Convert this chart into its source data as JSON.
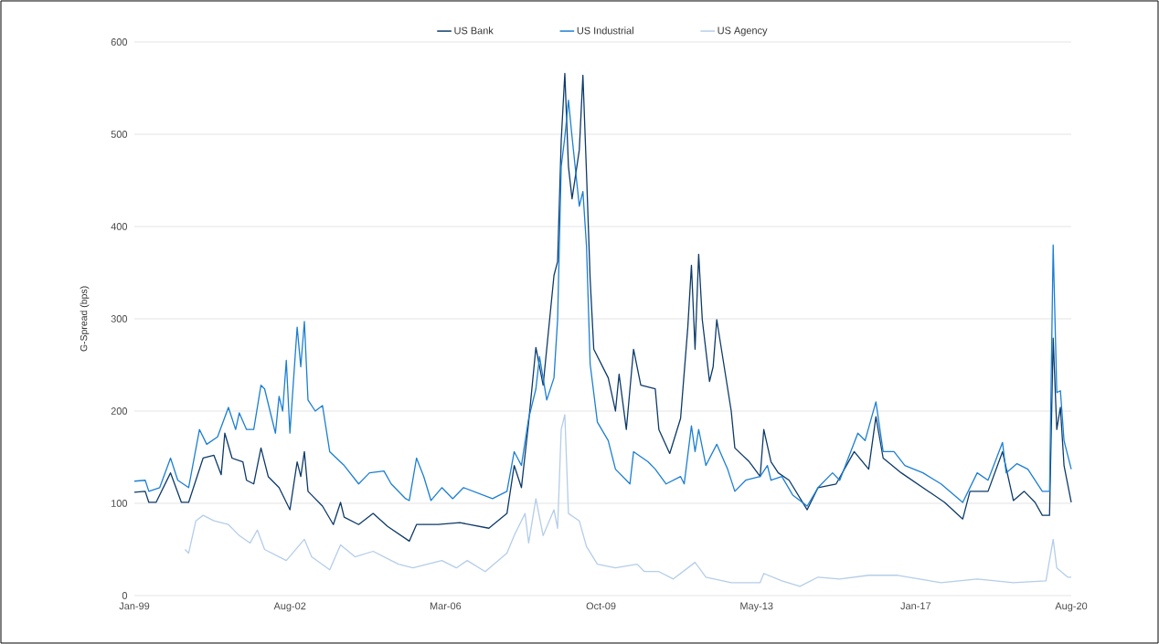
{
  "chart_data": {
    "type": "line",
    "ylabel": "G-Spread (bps)",
    "xlim": [
      "1999-01",
      "2020-08"
    ],
    "ylim": [
      0,
      600
    ],
    "xticks": [
      {
        "value": "1999-01",
        "label": "Jan-99"
      },
      {
        "value": "2002-08",
        "label": "Aug-02"
      },
      {
        "value": "2006-03",
        "label": "Mar-06"
      },
      {
        "value": "2009-10",
        "label": "Oct-09"
      },
      {
        "value": "2013-05",
        "label": "May-13"
      },
      {
        "value": "2017-01",
        "label": "Jan-17"
      },
      {
        "value": "2020-08",
        "label": "Aug-20"
      }
    ],
    "yticks": [
      0,
      100,
      200,
      300,
      400,
      500,
      600
    ],
    "grid": "y",
    "legend": "top",
    "line_style": "solid",
    "series": [
      {
        "name": "US Bank",
        "color": "#0d3a6a",
        "x": [
          "1999-01",
          "1999-04",
          "1999-05",
          "1999-07",
          "1999-11",
          "2000-02",
          "2000-04",
          "2000-08",
          "2000-11",
          "2001-01",
          "2001-02",
          "2001-04",
          "2001-07",
          "2001-08",
          "2001-10",
          "2001-12",
          "2002-02",
          "2002-05",
          "2002-08",
          "2002-10",
          "2002-11",
          "2002-12",
          "2003-01",
          "2003-05",
          "2003-08",
          "2003-10",
          "2003-11",
          "2004-03",
          "2004-07",
          "2004-11",
          "2005-05",
          "2005-07",
          "2006-01",
          "2006-07",
          "2007-03",
          "2007-08",
          "2007-10",
          "2007-12",
          "2008-02",
          "2008-04",
          "2008-06",
          "2008-09",
          "2008-10",
          "2008-11",
          "2008-12",
          "2009-01",
          "2009-02",
          "2009-04",
          "2009-05",
          "2009-06",
          "2009-07",
          "2009-08",
          "2009-12",
          "2010-02",
          "2010-03",
          "2010-05",
          "2010-07",
          "2010-09",
          "2011-01",
          "2011-02",
          "2011-05",
          "2011-08",
          "2011-10",
          "2011-11",
          "2011-12",
          "2012-01",
          "2012-02",
          "2012-04",
          "2012-05",
          "2012-06",
          "2012-10",
          "2012-11",
          "2013-03",
          "2013-06",
          "2013-07",
          "2013-09",
          "2013-11",
          "2014-02",
          "2014-07",
          "2014-10",
          "2015-03",
          "2015-08",
          "2015-12",
          "2016-02",
          "2016-04",
          "2016-09",
          "2017-03",
          "2017-09",
          "2018-02",
          "2018-04",
          "2018-09",
          "2019-01",
          "2019-04",
          "2019-07",
          "2019-10",
          "2019-12",
          "2020-02",
          "2020-03",
          "2020-04",
          "2020-05",
          "2020-06",
          "2020-08"
        ],
        "values": [
          112,
          113,
          101,
          101,
          133,
          101,
          101,
          149,
          152,
          131,
          176,
          149,
          145,
          125,
          121,
          160,
          129,
          117,
          93,
          145,
          129,
          156,
          113,
          97,
          77,
          101,
          85,
          77,
          89,
          75,
          59,
          77,
          77,
          79,
          73,
          89,
          141,
          117,
          188,
          269,
          228,
          347,
          362,
          493,
          566,
          465,
          430,
          483,
          564,
          457,
          343,
          267,
          236,
          200,
          240,
          180,
          267,
          228,
          224,
          180,
          154,
          192,
          291,
          358,
          267,
          370,
          299,
          232,
          248,
          299,
          200,
          160,
          145,
          129,
          180,
          145,
          133,
          125,
          93,
          117,
          121,
          156,
          137,
          194,
          149,
          133,
          117,
          101,
          83,
          113,
          113,
          156,
          103,
          113,
          101,
          87,
          87,
          279,
          180,
          204,
          141,
          101
        ]
      },
      {
        "name": "US Industrial",
        "color": "#1b7fd3",
        "x": [
          "1999-01",
          "1999-04",
          "1999-05",
          "1999-08",
          "1999-11",
          "2000-01",
          "2000-04",
          "2000-07",
          "2000-09",
          "2000-12",
          "2001-03",
          "2001-05",
          "2001-06",
          "2001-08",
          "2001-10",
          "2001-12",
          "2002-01",
          "2002-04",
          "2002-05",
          "2002-06",
          "2002-07",
          "2002-08",
          "2002-10",
          "2002-11",
          "2002-12",
          "2003-01",
          "2003-03",
          "2003-05",
          "2003-07",
          "2003-11",
          "2004-03",
          "2004-06",
          "2004-10",
          "2004-12",
          "2005-04",
          "2005-05",
          "2005-07",
          "2005-09",
          "2005-11",
          "2006-02",
          "2006-05",
          "2006-08",
          "2007-04",
          "2007-08",
          "2007-10",
          "2007-12",
          "2008-02",
          "2008-04",
          "2008-05",
          "2008-07",
          "2008-09",
          "2008-10",
          "2008-11",
          "2008-12",
          "2009-01",
          "2009-02",
          "2009-04",
          "2009-05",
          "2009-06",
          "2009-07",
          "2009-09",
          "2009-12",
          "2010-02",
          "2010-06",
          "2010-07",
          "2010-11",
          "2011-01",
          "2011-04",
          "2011-08",
          "2011-09",
          "2011-11",
          "2011-12",
          "2012-01",
          "2012-03",
          "2012-06",
          "2012-09",
          "2012-11",
          "2013-02",
          "2013-06",
          "2013-08",
          "2013-09",
          "2013-12",
          "2014-03",
          "2014-07",
          "2014-10",
          "2015-02",
          "2015-04",
          "2015-09",
          "2015-11",
          "2016-02",
          "2016-04",
          "2016-07",
          "2016-10",
          "2017-03",
          "2017-08",
          "2018-02",
          "2018-06",
          "2018-09",
          "2019-01",
          "2019-02",
          "2019-05",
          "2019-08",
          "2019-12",
          "2020-02",
          "2020-03",
          "2020-04",
          "2020-05",
          "2020-06",
          "2020-08"
        ],
        "values": [
          124,
          125,
          113,
          117,
          149,
          125,
          117,
          180,
          164,
          172,
          204,
          180,
          198,
          180,
          180,
          228,
          224,
          176,
          216,
          200,
          255,
          176,
          291,
          248,
          297,
          212,
          200,
          206,
          156,
          141,
          121,
          133,
          135,
          121,
          105,
          103,
          149,
          129,
          103,
          117,
          105,
          117,
          105,
          113,
          156,
          141,
          192,
          224,
          259,
          212,
          236,
          299,
          465,
          497,
          537,
          497,
          422,
          438,
          378,
          251,
          188,
          168,
          137,
          121,
          156,
          145,
          137,
          121,
          129,
          121,
          184,
          156,
          180,
          141,
          164,
          137,
          113,
          125,
          129,
          141,
          125,
          129,
          109,
          97,
          117,
          133,
          125,
          176,
          168,
          210,
          156,
          156,
          141,
          133,
          121,
          101,
          133,
          125,
          166,
          133,
          143,
          137,
          113,
          113,
          380,
          220,
          222,
          168,
          137
        ]
      },
      {
        "name": "US Agency",
        "color": "#b4cdea",
        "x": [
          "2000-03",
          "2000-04",
          "2000-06",
          "2000-08",
          "2000-11",
          "2001-03",
          "2001-06",
          "2001-09",
          "2001-11",
          "2002-01",
          "2002-07",
          "2002-12",
          "2003-02",
          "2003-07",
          "2003-10",
          "2004-02",
          "2004-07",
          "2004-12",
          "2005-02",
          "2005-06",
          "2006-02",
          "2006-06",
          "2006-09",
          "2007-02",
          "2007-08",
          "2007-10",
          "2008-01",
          "2008-02",
          "2008-04",
          "2008-06",
          "2008-09",
          "2008-10",
          "2008-11",
          "2008-12",
          "2009-01",
          "2009-04",
          "2009-06",
          "2009-09",
          "2010-02",
          "2010-08",
          "2010-10",
          "2011-02",
          "2011-06",
          "2011-12",
          "2012-03",
          "2012-10",
          "2013-06",
          "2013-07",
          "2013-12",
          "2014-05",
          "2014-10",
          "2015-04",
          "2015-12",
          "2016-08",
          "2017-08",
          "2018-06",
          "2019-04",
          "2020-01",
          "2020-03",
          "2020-04",
          "2020-07",
          "2020-08"
        ],
        "values": [
          50,
          46,
          81,
          87,
          81,
          77,
          65,
          57,
          71,
          50,
          38,
          61,
          42,
          28,
          55,
          42,
          48,
          38,
          34,
          30,
          38,
          30,
          38,
          26,
          46,
          65,
          89,
          57,
          105,
          65,
          93,
          73,
          180,
          196,
          89,
          81,
          53,
          34,
          30,
          34,
          26,
          26,
          18,
          36,
          20,
          14,
          14,
          24,
          16,
          10,
          20,
          18,
          22,
          22,
          14,
          18,
          14,
          16,
          61,
          30,
          20,
          20
        ]
      }
    ]
  }
}
